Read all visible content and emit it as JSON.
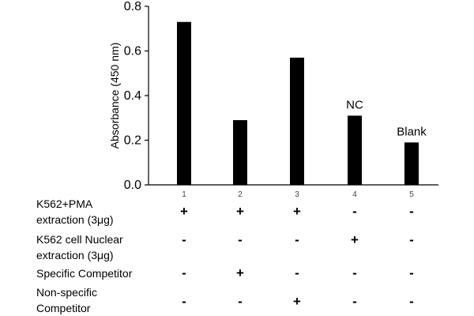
{
  "chart_data": {
    "type": "bar",
    "categories": [
      "1",
      "2",
      "3",
      "4",
      "5"
    ],
    "values": [
      0.73,
      0.29,
      0.57,
      0.31,
      0.19
    ],
    "ylabel": "Absorbance (450 nm)",
    "xlabel": "",
    "ylim": [
      0,
      0.8
    ],
    "yticks": [
      "0.0",
      "0.2",
      "0.4",
      "0.6",
      "0.8"
    ],
    "annotations": [
      {
        "category": "4",
        "text": "NC"
      },
      {
        "category": "5",
        "text": "Blank"
      }
    ],
    "grid": false,
    "legend": "none",
    "bar_color": "#000000"
  },
  "conditions": [
    {
      "label_lines": [
        "K562+PMA",
        "extraction (3μg)"
      ],
      "marks": [
        "+",
        "+",
        "+",
        "-",
        "-"
      ]
    },
    {
      "label_lines": [
        "K562 cell Nuclear",
        "extraction (3μg)"
      ],
      "marks": [
        "-",
        "-",
        "-",
        "+",
        "-"
      ]
    },
    {
      "label_lines": [
        "Specific Competitor"
      ],
      "marks": [
        "-",
        "+",
        "-",
        "-",
        "-"
      ]
    },
    {
      "label_lines": [
        "Non-specific",
        "Competitor"
      ],
      "marks": [
        "-",
        "-",
        "+",
        "-",
        "-"
      ]
    }
  ]
}
